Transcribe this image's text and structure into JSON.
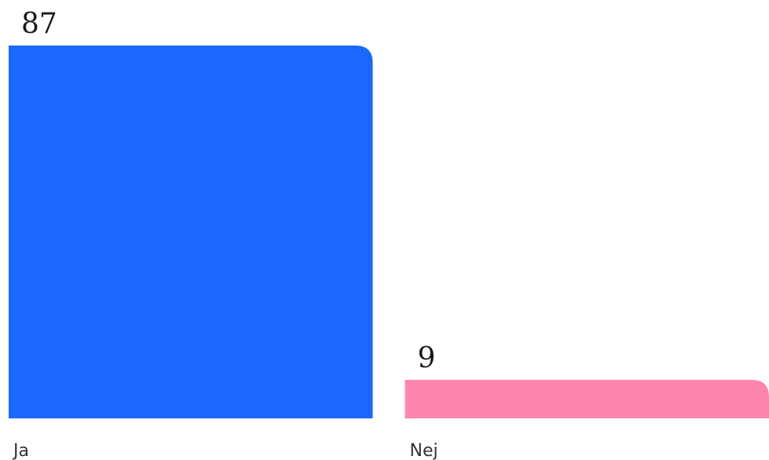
{
  "chart_data": {
    "type": "bar",
    "categories": [
      "Ja",
      "Nej"
    ],
    "values": [
      87,
      9
    ],
    "colors": [
      "#1c68ff",
      "#ff85ad"
    ],
    "ylim": [
      0,
      87
    ],
    "grid": false,
    "legend": "none",
    "show_value_labels": true
  }
}
